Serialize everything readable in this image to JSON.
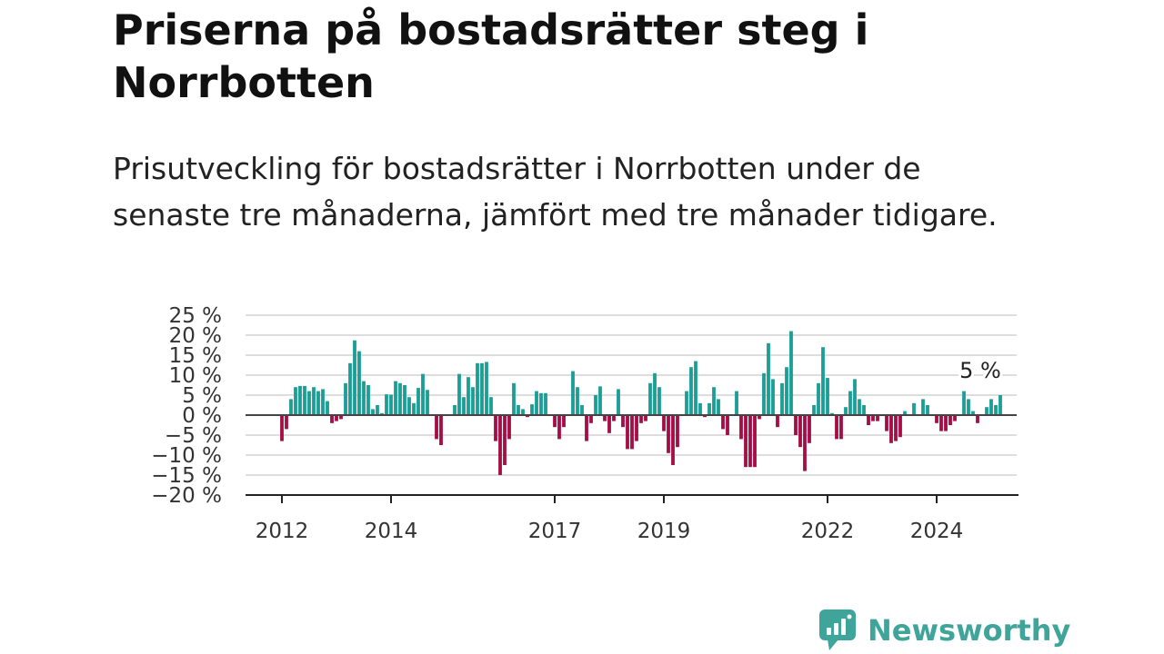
{
  "title": "Priserna på bostadsrätter steg i Norrbotten",
  "subtitle": "Prisutveckling för bostadsrätter i Norrbotten under de senaste tre månaderna, jämfört med tre månader tidigare.",
  "brand": "Newsworthy",
  "colors": {
    "positive": "#1a9e95",
    "negative": "#a50d45",
    "grid": "#dddddd",
    "axis": "#444444",
    "brand": "#3fa59b"
  },
  "chart_data": {
    "type": "bar",
    "x_start": "2012-01",
    "x_ticks": [
      "2012",
      "2014",
      "2017",
      "2019",
      "2022",
      "2024"
    ],
    "y_ticks": [
      "25 %",
      "20 %",
      "15 %",
      "10 %",
      "5 %",
      "0 %",
      "−5 %",
      "−10 %",
      "−15 %",
      "−20 %"
    ],
    "ylim": [
      -20,
      25
    ],
    "grid": true,
    "annotation": "5 %",
    "values": [
      -6.5,
      -3.5,
      4,
      7,
      7.3,
      7.3,
      6,
      7,
      6,
      6.5,
      3.5,
      -2,
      -1.5,
      -1,
      8,
      13,
      18.7,
      16,
      8.5,
      7.5,
      1.5,
      2.5,
      0.5,
      5.2,
      5.1,
      8.5,
      8,
      7.5,
      4.5,
      3,
      6.8,
      10.3,
      6.3,
      0,
      -6,
      -7.5,
      0,
      0,
      2.5,
      10.3,
      4.5,
      9.5,
      7,
      13,
      13,
      13.3,
      4.5,
      -6.5,
      -15,
      -12.5,
      -6,
      8,
      2.5,
      1.5,
      -0.5,
      2.7,
      6,
      5.5,
      5.5,
      0,
      -3,
      -6,
      -3,
      0,
      11,
      7,
      2.5,
      -6.5,
      -2,
      5,
      7.2,
      -1.5,
      -4.5,
      -1.5,
      6.5,
      -3,
      -8.5,
      -8.5,
      -6.5,
      -2,
      -1.5,
      8,
      10.5,
      7,
      -4,
      -9.5,
      -12.5,
      -8,
      0,
      6,
      12,
      13.5,
      3,
      -0.5,
      3,
      7,
      4,
      -3.5,
      -5,
      0,
      6,
      -6,
      -13,
      -13,
      -13,
      -1,
      10.5,
      18,
      9,
      -3,
      8,
      12,
      21,
      -5,
      -8,
      -14,
      -7,
      2.5,
      8,
      17,
      9.3,
      0.5,
      -6,
      -6,
      2,
      6,
      9,
      4,
      2.5,
      -2.5,
      -1.5,
      -1.5,
      0,
      -4,
      -7,
      -6.5,
      -5.5,
      1,
      0,
      3,
      0,
      4,
      2.5,
      0,
      -2,
      -4,
      -4,
      -2.5,
      -1.5,
      0,
      6,
      4,
      1,
      -2,
      0,
      2,
      4,
      2.5,
      5
    ]
  }
}
